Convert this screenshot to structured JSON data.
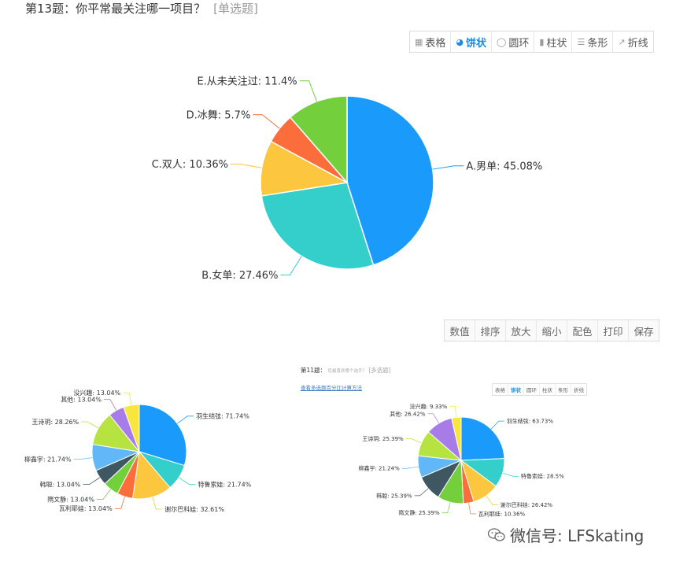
{
  "header": {
    "question_title": "第13题：你平常最关注哪一项目？",
    "question_type": "[单选题]"
  },
  "toolbar": [
    {
      "label": "表格",
      "icon": "table-icon",
      "active": false
    },
    {
      "label": "饼状",
      "icon": "pie-icon",
      "active": true
    },
    {
      "label": "圆环",
      "icon": "donut-icon",
      "active": false
    },
    {
      "label": "柱状",
      "icon": "bar-icon",
      "active": false
    },
    {
      "label": "条形",
      "icon": "hbar-icon",
      "active": false
    },
    {
      "label": "折线",
      "icon": "line-icon",
      "active": false
    }
  ],
  "toolbar2": [
    "数值",
    "排序",
    "放大",
    "缩小",
    "配色",
    "打印",
    "保存"
  ],
  "chart_data": [
    {
      "type": "pie",
      "categories": [
        "A.男单",
        "B.女单",
        "C.双人",
        "D.冰舞",
        "E.从未关注过"
      ],
      "values": [
        45.08,
        27.46,
        10.36,
        5.7,
        11.4
      ],
      "labels": [
        "A.男单: 45.08%",
        "B.女单: 27.46%",
        "C.双人: 10.36%",
        "D.冰舞: 5.7%",
        "E.从未关注过: 11.4%"
      ],
      "colors": [
        "#1a9bfc",
        "#35cfcb",
        "#fcc63f",
        "#fb6e3c",
        "#73cf3c"
      ]
    },
    {
      "type": "pie",
      "categories": [
        "羽生结弦",
        "特鲁索娃",
        "谢尔巴科娃",
        "瓦利耶娃",
        "隋文静",
        "韩聪",
        "柳鑫宇",
        "王诗玥",
        "其他",
        "没兴趣"
      ],
      "values": [
        71.74,
        21.74,
        32.61,
        13.04,
        13.04,
        13.04,
        21.74,
        28.26,
        13.04,
        13.04
      ],
      "labels": [
        "羽生结弦: 71.74%",
        "特鲁索娃: 21.74%",
        "谢尔巴科娃: 32.61%",
        "瓦利耶娃: 13.04%",
        "隋文静: 13.04%",
        "韩聪: 13.04%",
        "柳鑫宇: 21.74%",
        "王诗玥: 28.26%",
        "其他: 13.04%",
        "没兴趣: 13.04%"
      ],
      "colors": [
        "#1a9bfc",
        "#35cfcb",
        "#fcc63f",
        "#fb6e3c",
        "#73cf3c",
        "#3f5663",
        "#62b8f7",
        "#b6e340",
        "#a77be8",
        "#f9e63c"
      ]
    },
    {
      "type": "pie",
      "categories": [
        "羽生结弦",
        "特鲁索娃",
        "谢尔巴科娃",
        "瓦利耶娃",
        "隋文静",
        "韩聪",
        "柳鑫宇",
        "王诗玥",
        "其他",
        "没兴趣"
      ],
      "values": [
        63.73,
        28.5,
        26.42,
        10.36,
        25.39,
        25.39,
        21.24,
        25.39,
        26.42,
        9.33
      ],
      "labels": [
        "羽生结弦: 63.73%",
        "特鲁索娃: 28.5%",
        "谢尔巴科娃: 26.42%",
        "瓦利耶娃: 10.36%",
        "隋文静: 25.39%",
        "韩聪: 25.39%",
        "柳鑫宇: 21.24%",
        "王诗玥: 25.39%",
        "其他: 26.42%",
        "没兴趣: 9.33%"
      ],
      "colors": [
        "#1a9bfc",
        "#35cfcb",
        "#fcc63f",
        "#fb6e3c",
        "#73cf3c",
        "#3f5663",
        "#62b8f7",
        "#b6e340",
        "#a77be8",
        "#f9e63c"
      ]
    }
  ],
  "mini_panel": {
    "title": "第11题：",
    "subtitle": "您最喜欢哪个选手？",
    "type": "[多选题]",
    "link": "查看多选题百分比计算方法",
    "toolbar": [
      "表格",
      "饼状",
      "圆环",
      "柱状",
      "条形",
      "折线"
    ],
    "active_index": 1
  },
  "watermark": {
    "text": "微信号: LFSkating",
    "icon": "wechat-icon"
  }
}
